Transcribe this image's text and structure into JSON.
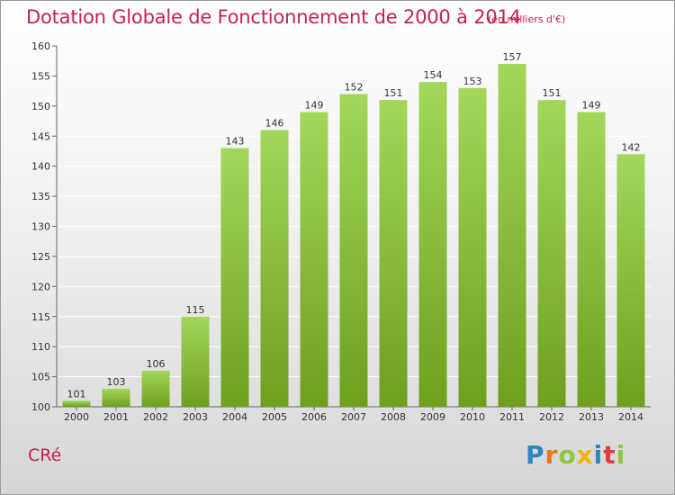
{
  "header": {
    "title": "Dotation Globale de Fonctionnement de 2000 à 2014",
    "unit_note": "(en milliers d'€)"
  },
  "footer": {
    "commune": "CRé",
    "logo_letters": [
      "P",
      "r",
      "o",
      "x",
      "i",
      "t",
      "i"
    ]
  },
  "colors": {
    "bar_light": "#a2d75a",
    "bar_dark": "#6ea01e",
    "title": "#c6224a",
    "grid": "#ffffff"
  },
  "chart_data": {
    "type": "bar",
    "title": "Dotation Globale de Fonctionnement de 2000 à 2014",
    "subtitle": "(en milliers d'€)",
    "xlabel": "",
    "ylabel": "",
    "ylim": [
      100,
      160
    ],
    "yticks": [
      100,
      105,
      110,
      115,
      120,
      125,
      130,
      135,
      140,
      145,
      150,
      155,
      160
    ],
    "grid": true,
    "categories": [
      "2000",
      "2001",
      "2002",
      "2003",
      "2004",
      "2005",
      "2006",
      "2007",
      "2008",
      "2009",
      "2010",
      "2011",
      "2012",
      "2013",
      "2014"
    ],
    "values": [
      101,
      103,
      106,
      115,
      143,
      146,
      149,
      152,
      151,
      154,
      153,
      157,
      151,
      149,
      142
    ],
    "data_labels": [
      "101",
      "103",
      "106",
      "115",
      "143",
      "146",
      "149",
      "152",
      "151",
      "154",
      "153",
      "157",
      "151",
      "149",
      "142"
    ]
  }
}
